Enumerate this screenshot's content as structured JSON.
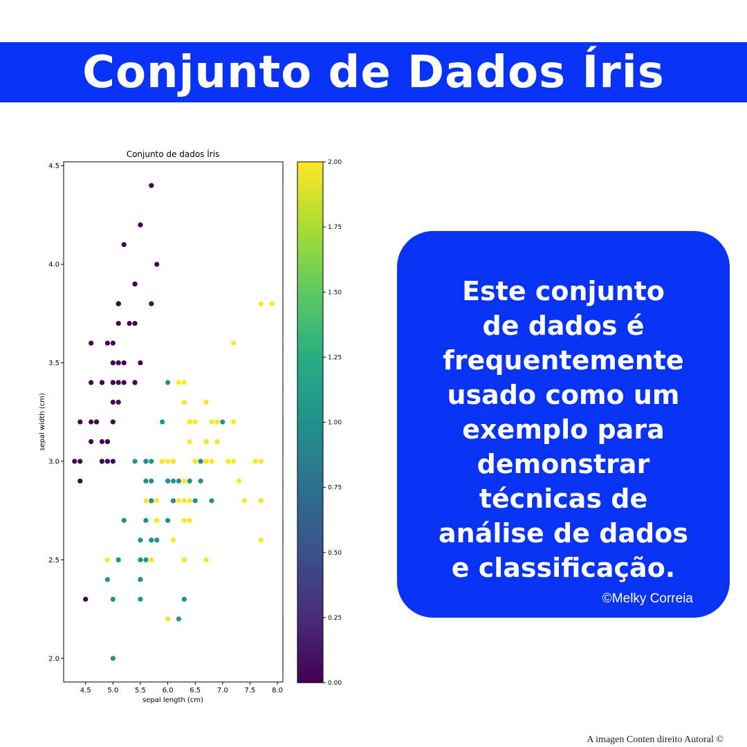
{
  "banner": {
    "title": "Conjunto de Dados Íris"
  },
  "card": {
    "text": "Este conjunto\nde dados é\nfrequentemente\nusado como um\nexemplo para\ndemonstrar\ntécnicas de\nanálise de dados\ne classificação.",
    "credit": "©Melky Correia"
  },
  "footer": {
    "copyright": "A imagen Conten direito Autoral ©"
  },
  "chart_data": {
    "type": "scatter",
    "title": "Conjunto de dados Íris",
    "xlabel": "sepal length (cm)",
    "ylabel": "sepal width (cm)",
    "xlim": [
      4.1,
      8.1
    ],
    "ylim": [
      1.88,
      4.52
    ],
    "xticks": [
      "4.5",
      "5.0",
      "5.5",
      "6.0",
      "6.5",
      "7.0",
      "7.5",
      "8.0"
    ],
    "yticks": [
      "2.0",
      "2.5",
      "3.0",
      "3.5",
      "4.0",
      "4.5"
    ],
    "grid": false,
    "colormap": "viridis",
    "colorbar": {
      "range": [
        0,
        2
      ],
      "ticks": [
        "0.00",
        "0.25",
        "0.50",
        "0.75",
        "1.00",
        "1.25",
        "1.50",
        "1.75",
        "2.00"
      ]
    },
    "colors": {
      "class0": "#440154",
      "class1": "#21918c",
      "class2": "#fde725"
    },
    "series": [
      {
        "class_value": 0,
        "x": [
          5.1,
          4.9,
          4.7,
          4.6,
          5.0,
          5.4,
          4.6,
          5.0,
          4.4,
          4.9,
          5.4,
          4.8,
          4.8,
          4.3,
          5.8,
          5.7,
          5.4,
          5.1,
          5.7,
          5.1,
          5.4,
          5.1,
          4.6,
          5.1,
          4.8,
          5.0,
          5.0,
          5.2,
          5.2,
          4.7,
          4.8,
          5.4,
          5.2,
          5.5,
          4.9,
          5.0,
          5.5,
          4.9,
          4.4,
          5.1,
          5.0,
          4.5,
          4.4,
          5.0,
          5.1,
          4.8,
          5.1,
          4.6,
          5.3,
          5.0
        ],
        "y": [
          3.5,
          3.0,
          3.2,
          3.1,
          3.6,
          3.9,
          3.4,
          3.4,
          2.9,
          3.1,
          3.7,
          3.4,
          3.0,
          3.0,
          4.0,
          4.4,
          3.9,
          3.5,
          3.8,
          3.8,
          3.4,
          3.7,
          3.6,
          3.3,
          3.4,
          3.0,
          3.4,
          3.5,
          3.4,
          3.2,
          3.1,
          3.4,
          4.1,
          4.2,
          3.1,
          3.2,
          3.5,
          3.6,
          3.0,
          3.4,
          3.5,
          2.3,
          3.2,
          3.5,
          3.8,
          3.0,
          3.8,
          3.2,
          3.7,
          3.3
        ]
      },
      {
        "class_value": 1,
        "x": [
          7.0,
          6.4,
          6.9,
          5.5,
          6.5,
          5.7,
          6.3,
          4.9,
          6.6,
          5.2,
          5.0,
          5.9,
          6.0,
          6.1,
          5.6,
          6.7,
          5.6,
          5.8,
          6.2,
          5.6,
          5.9,
          6.1,
          6.3,
          6.1,
          6.4,
          6.6,
          6.8,
          6.7,
          6.0,
          5.7,
          5.5,
          5.5,
          5.8,
          6.0,
          5.4,
          6.0,
          6.7,
          6.3,
          5.6,
          5.5,
          5.5,
          6.1,
          5.8,
          5.0,
          5.6,
          5.7,
          5.7,
          6.2,
          5.1,
          5.7
        ],
        "y": [
          3.2,
          3.2,
          3.1,
          2.3,
          2.8,
          2.8,
          3.3,
          2.4,
          2.9,
          2.7,
          2.0,
          3.0,
          2.2,
          2.9,
          2.9,
          3.1,
          3.0,
          2.7,
          2.2,
          2.5,
          3.2,
          2.8,
          2.5,
          2.8,
          2.9,
          3.0,
          2.8,
          3.0,
          2.9,
          2.6,
          2.4,
          2.4,
          2.7,
          2.7,
          3.0,
          3.4,
          3.1,
          2.3,
          3.0,
          2.5,
          2.6,
          3.0,
          2.6,
          2.3,
          2.7,
          3.0,
          2.9,
          2.9,
          2.5,
          2.8
        ]
      },
      {
        "class_value": 2,
        "x": [
          6.3,
          5.8,
          7.1,
          6.3,
          6.5,
          7.6,
          4.9,
          7.3,
          6.7,
          7.2,
          6.5,
          6.4,
          6.8,
          5.7,
          5.8,
          6.4,
          6.5,
          7.7,
          7.7,
          6.0,
          6.9,
          5.6,
          7.7,
          6.3,
          6.7,
          7.2,
          6.2,
          6.1,
          6.4,
          7.2,
          7.4,
          7.9,
          6.4,
          6.3,
          6.1,
          7.7,
          6.3,
          6.4,
          6.0,
          6.9,
          6.7,
          6.9,
          5.8,
          6.8,
          6.7,
          6.7,
          6.3,
          6.5,
          6.2,
          5.9
        ],
        "y": [
          3.3,
          2.7,
          3.0,
          2.9,
          3.0,
          3.0,
          2.5,
          2.9,
          2.5,
          3.6,
          3.2,
          2.7,
          3.0,
          2.5,
          2.8,
          3.2,
          3.0,
          3.8,
          2.6,
          2.2,
          3.2,
          2.8,
          2.8,
          2.7,
          3.3,
          3.2,
          2.8,
          3.0,
          2.8,
          3.0,
          2.8,
          3.8,
          2.8,
          2.8,
          2.6,
          3.0,
          3.4,
          3.1,
          3.0,
          3.1,
          3.1,
          3.1,
          2.7,
          3.2,
          3.3,
          3.0,
          2.5,
          3.0,
          3.4,
          3.0
        ]
      }
    ]
  }
}
